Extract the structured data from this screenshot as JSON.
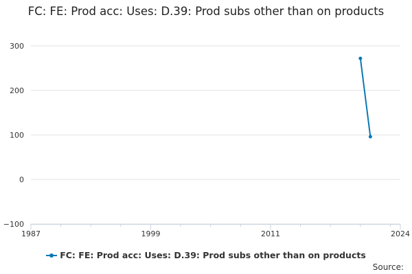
{
  "chart_data": {
    "type": "line",
    "title": "FC: FE: Prod acc: Uses: D.39: Prod subs other than on products",
    "xlabel": "",
    "ylabel": "",
    "xlim": [
      1987,
      2024
    ],
    "ylim": [
      -100,
      300
    ],
    "x_ticks": [
      "1987",
      "1999",
      "2011",
      "2024"
    ],
    "y_ticks": [
      "300",
      "200",
      "100",
      "0",
      "−100"
    ],
    "y_tick_values": [
      300,
      200,
      100,
      0,
      -100
    ],
    "x_tick_values": [
      1987,
      1999,
      2011,
      2024
    ],
    "grid": "horizontal",
    "legend_position": "bottom",
    "series": [
      {
        "name": "FC: FE: Prod acc: Uses: D.39: Prod subs other than on products",
        "color": "#0b78b4",
        "x": [
          2020,
          2021
        ],
        "y": [
          272,
          96
        ]
      }
    ]
  },
  "legend": {
    "label": "FC: FE: Prod acc: Uses: D.39: Prod subs other than on products"
  },
  "source_label": "Source:"
}
